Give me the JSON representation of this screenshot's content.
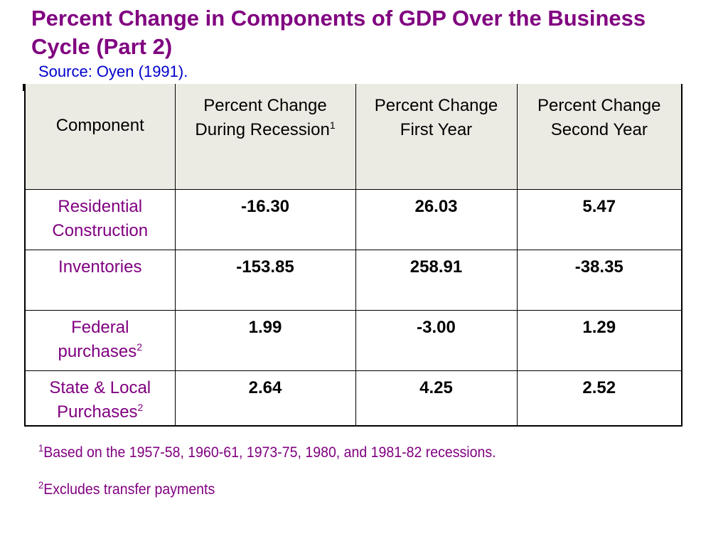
{
  "title": "Percent Change in Components of GDP Over the Business Cycle (Part 2)",
  "source": "Source: Oyen (1991).",
  "table": {
    "headers": [
      {
        "text": "Component",
        "sup": ""
      },
      {
        "text": "Percent Change During Recession",
        "sup": "1"
      },
      {
        "text": "Percent Change First Year",
        "sup": ""
      },
      {
        "text": "Percent Change Second Year",
        "sup": ""
      }
    ],
    "rows": [
      {
        "component": "Residential Construction",
        "sup": "",
        "recession": "-16.30",
        "first_year": "26.03",
        "second_year": "5.47"
      },
      {
        "component": "Inventories",
        "sup": "",
        "recession": "-153.85",
        "first_year": "258.91",
        "second_year": "-38.35"
      },
      {
        "component": "Federal purchases",
        "sup": "2",
        "recession": "1.99",
        "first_year": "-3.00",
        "second_year": "1.29"
      },
      {
        "component": "State & Local Purchases",
        "sup": "2",
        "recession": "2.64",
        "first_year": "4.25",
        "second_year": "2.52"
      }
    ]
  },
  "footnotes": [
    {
      "marker": "1",
      "text": "Based on the 1957-58, 1960-61, 1973-75, 1980, and 1981-82 recessions."
    },
    {
      "marker": "2",
      "text": "Excludes transfer payments"
    }
  ],
  "colors": {
    "title": "#800080",
    "source": "#0000cc",
    "header_background": "#ecebe3",
    "component_text": "#800080",
    "footnote_text": "#800080"
  }
}
